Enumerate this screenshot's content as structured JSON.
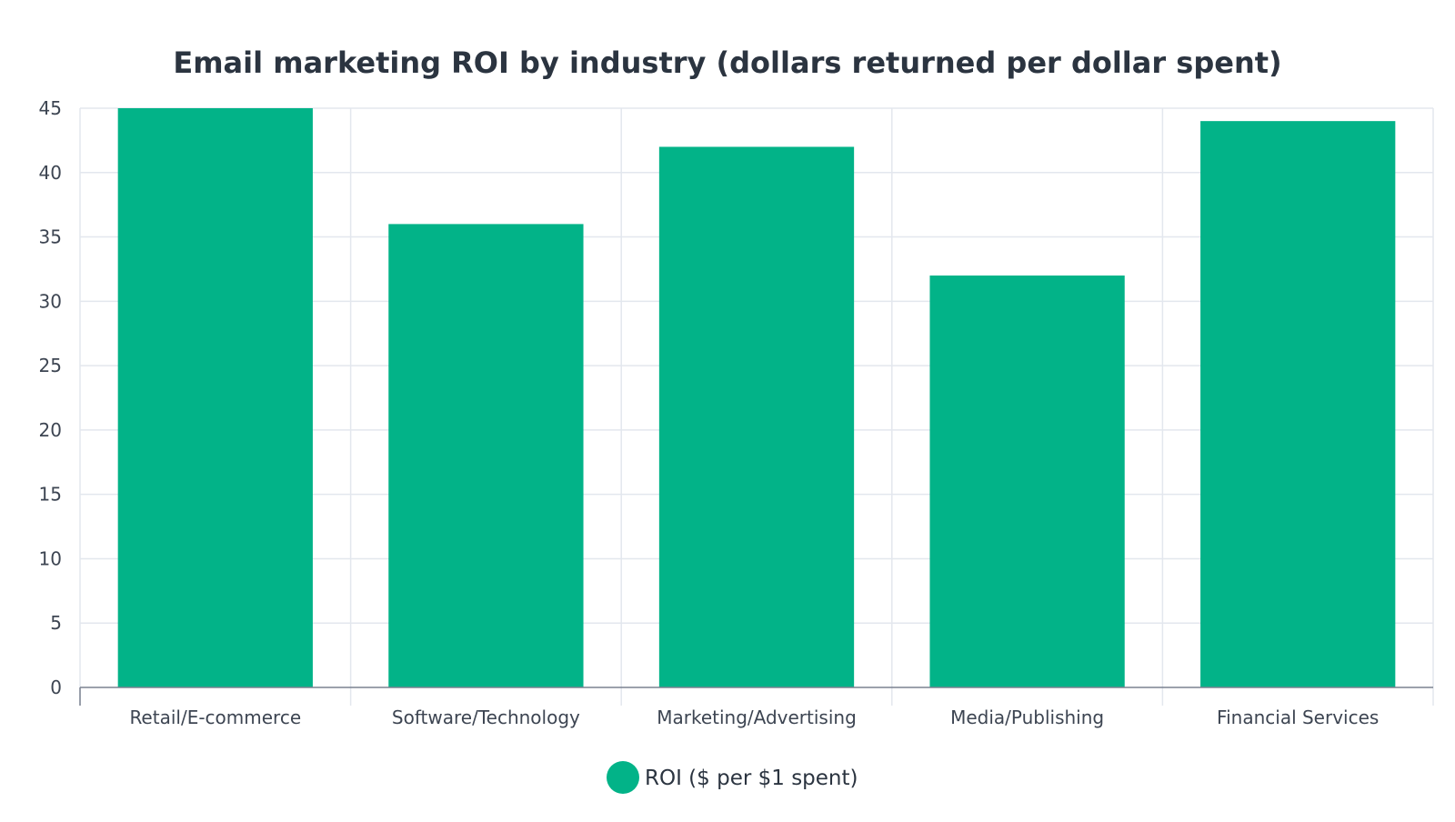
{
  "chart_data": {
    "type": "bar",
    "title": "Email marketing ROI by industry (dollars returned per dollar spent)",
    "xlabel": "",
    "ylabel": "",
    "categories": [
      "Retail/E-commerce",
      "Software/Technology",
      "Marketing/Advertising",
      "Media/Publishing",
      "Financial Services"
    ],
    "series": [
      {
        "name": "ROI ($ per $1 spent)",
        "values": [
          45,
          36,
          42,
          32,
          44
        ],
        "color": "#02b388"
      }
    ],
    "ylim": [
      0,
      45
    ],
    "yticks": [
      0,
      5,
      10,
      15,
      20,
      25,
      30,
      35,
      40,
      45
    ],
    "grid": true,
    "legend_position": "bottom-center"
  }
}
